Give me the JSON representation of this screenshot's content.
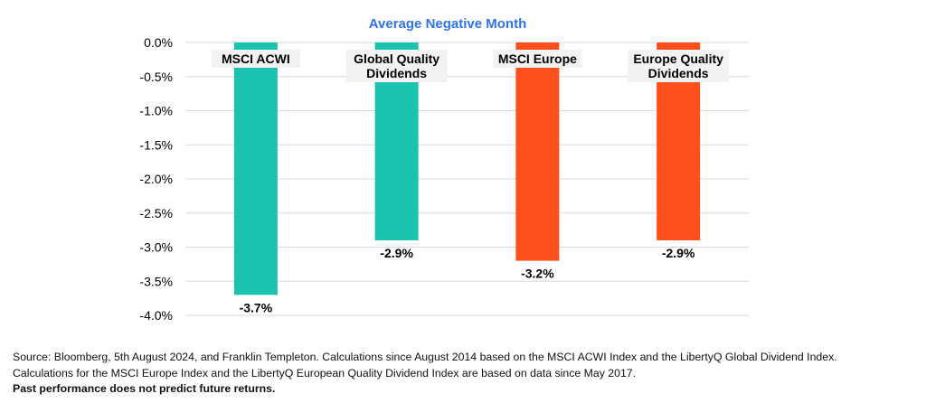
{
  "chart_data": {
    "type": "bar",
    "title": "Average Negative Month",
    "categories": [
      "MSCI ACWI",
      "Global Quality\nDividends",
      "MSCI Europe",
      "Europe Quality\nDividends"
    ],
    "values": [
      -3.7,
      -2.9,
      -3.2,
      -2.9
    ],
    "value_labels": [
      "-3.7%",
      "-2.9%",
      "-3.2%",
      "-2.9%"
    ],
    "colors": [
      "#19C3B0",
      "#19C3B0",
      "#FF4F1A",
      "#FF4F1A"
    ],
    "ylim": [
      -4.0,
      0.0
    ],
    "yticks": [
      0.0,
      -0.5,
      -1.0,
      -1.5,
      -2.0,
      -2.5,
      -3.0,
      -3.5,
      -4.0
    ],
    "ytick_labels": [
      "0.0%",
      "-0.5%",
      "-1.0%",
      "-1.5%",
      "-2.0%",
      "-2.5%",
      "-3.0%",
      "-3.5%",
      "-4.0%"
    ],
    "grid": true,
    "legend": "none",
    "xlabel": "",
    "ylabel": ""
  },
  "footer": {
    "source_line1": "Source: Bloomberg, 5th August 2024, and Franklin Templeton. Calculations since August 2014 based on the MSCI ACWI Index and the LibertyQ Global Dividend Index.",
    "source_line2": "Calculations for the MSCI Europe Index and the LibertyQ European Quality Dividend Index are based on data since May 2017.",
    "disclaimer": "Past performance does not predict future returns."
  }
}
